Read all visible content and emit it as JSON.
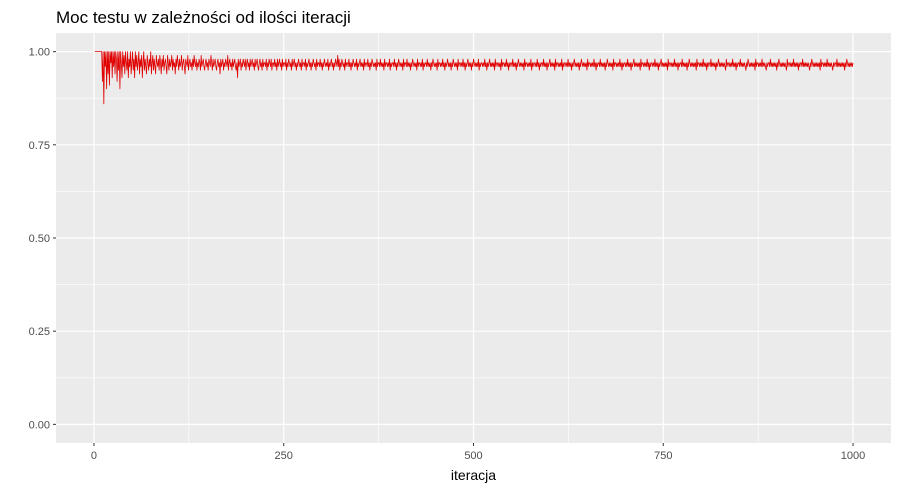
{
  "chart_data": {
    "type": "line",
    "title": "Moc testu w zależności od ilości iteracji",
    "xlabel": "iteracja",
    "ylabel": "",
    "xlim": [
      -50,
      1050
    ],
    "ylim": [
      -0.05,
      1.05
    ],
    "x_ticks": [
      0,
      250,
      500,
      750,
      1000
    ],
    "x_tick_labels": [
      "0",
      "250",
      "500",
      "750",
      "1000"
    ],
    "y_ticks": [
      0,
      0.25,
      0.5,
      0.75,
      1.0
    ],
    "y_tick_labels": [
      "0.00",
      "0.25",
      "0.50",
      "0.75",
      "1.00"
    ],
    "x_minor_ticks": [
      125,
      375,
      625,
      875
    ],
    "y_minor_ticks": [
      0.125,
      0.375,
      0.625,
      0.875
    ],
    "grid": true,
    "legend": "none",
    "colors": {
      "panel": "#ebebeb",
      "grid": "#ffffff",
      "series": "#e00000"
    },
    "series": [
      {
        "name": "",
        "x_start": 1,
        "x_step": 1,
        "values": [
          1.0,
          1.0,
          1.0,
          1.0,
          1.0,
          1.0,
          1.0,
          1.0,
          1.0,
          1.0,
          1.0,
          0.92,
          1.0,
          0.86,
          1.0,
          0.96,
          1.0,
          0.9,
          1.0,
          0.94,
          1.0,
          0.91,
          1.0,
          0.97,
          1.0,
          0.93,
          1.0,
          0.96,
          1.0,
          0.94,
          1.0,
          0.98,
          0.92,
          1.0,
          0.95,
          1.0,
          0.9,
          1.0,
          0.97,
          0.93,
          1.0,
          0.96,
          0.99,
          0.94,
          1.0,
          0.97,
          0.95,
          1.0,
          0.93,
          0.98,
          0.96,
          1.0,
          0.94,
          0.97,
          1.0,
          0.95,
          0.98,
          0.93,
          1.0,
          0.96,
          0.99,
          0.95,
          0.97,
          1.0,
          0.94,
          0.98,
          0.96,
          0.99,
          0.93,
          0.97,
          1.0,
          0.95,
          0.98,
          0.96,
          0.94,
          0.99,
          0.97,
          0.95,
          0.98,
          0.96,
          1.0,
          0.94,
          0.97,
          0.99,
          0.95,
          0.98,
          0.96,
          0.94,
          0.99,
          0.97,
          0.96,
          0.98,
          0.95,
          0.99,
          0.97,
          0.94,
          0.98,
          0.96,
          0.99,
          0.95,
          0.97,
          0.98,
          0.96,
          0.94,
          0.99,
          0.97,
          0.95,
          0.98,
          0.96,
          0.97,
          0.99,
          0.95,
          0.98,
          0.96,
          0.97,
          0.94,
          0.98,
          0.96,
          0.99,
          0.97,
          0.95,
          0.98,
          0.96,
          0.97,
          0.99,
          0.95,
          0.97,
          0.98,
          0.96,
          0.94,
          0.98,
          0.97,
          0.96,
          0.99,
          0.95,
          0.97,
          0.98,
          0.96,
          0.97,
          0.95,
          0.98,
          0.96,
          0.99,
          0.97,
          0.96,
          0.98,
          0.95,
          0.97,
          0.96,
          0.98,
          0.97,
          0.95,
          0.99,
          0.96,
          0.97,
          0.98,
          0.96,
          0.95,
          0.97,
          0.98,
          0.96,
          0.97,
          0.95,
          0.98,
          0.97,
          0.96,
          0.99,
          0.97,
          0.95,
          0.98,
          0.96,
          0.97,
          0.98,
          0.96,
          0.95,
          0.97,
          0.98,
          0.96,
          0.97,
          0.94,
          0.98,
          0.96,
          0.97,
          0.98,
          0.95,
          0.97,
          0.96,
          0.98,
          0.97,
          0.96,
          0.99,
          0.95,
          0.97,
          0.98,
          0.96,
          0.97,
          0.95,
          0.98,
          0.96,
          0.97,
          0.98,
          0.96,
          0.95,
          0.97,
          0.93,
          0.98,
          0.96,
          0.97,
          0.98,
          0.95,
          0.97,
          0.96,
          0.98,
          0.97,
          0.96,
          0.98,
          0.95,
          0.97,
          0.98,
          0.96,
          0.97,
          0.95,
          0.98,
          0.96,
          0.97,
          0.98,
          0.96,
          0.97,
          0.95,
          0.98,
          0.96,
          0.97,
          0.98,
          0.96,
          0.95,
          0.97,
          0.98,
          0.96,
          0.97,
          0.95,
          0.98,
          0.96,
          0.97,
          0.97,
          0.96,
          0.98,
          0.95,
          0.97,
          0.96,
          0.98,
          0.97,
          0.96,
          0.98,
          0.95,
          0.97,
          0.97,
          0.96,
          0.98,
          0.96,
          0.97,
          0.95,
          0.98,
          0.96,
          0.97,
          0.98,
          0.96,
          0.97,
          0.95,
          0.98,
          0.96,
          0.97,
          0.97,
          0.96,
          0.98,
          0.95,
          0.97,
          0.96,
          0.98,
          0.97,
          0.96,
          0.97,
          0.95,
          0.98,
          0.96,
          0.97,
          0.98,
          0.96,
          0.97,
          0.95,
          0.97,
          0.96,
          0.98,
          0.97,
          0.96,
          0.97,
          0.95,
          0.98,
          0.96,
          0.97,
          0.97,
          0.96,
          0.98,
          0.95,
          0.97,
          0.96,
          0.97,
          0.98,
          0.96,
          0.97,
          0.95,
          0.97,
          0.96,
          0.98,
          0.97,
          0.96,
          0.97,
          0.95,
          0.98,
          0.96,
          0.97,
          0.97,
          0.96,
          0.98,
          0.96,
          0.97,
          0.95,
          0.97,
          0.96,
          0.98,
          0.97,
          0.96,
          0.97,
          0.96,
          0.98,
          0.95,
          0.97,
          0.96,
          0.97,
          0.98,
          0.96,
          0.97,
          0.95,
          0.97,
          0.96,
          0.98,
          0.97,
          0.96,
          0.99,
          0.96,
          0.98,
          0.95,
          0.97,
          0.96,
          0.98,
          0.97,
          0.96,
          0.97,
          0.95,
          0.98,
          0.96,
          0.97,
          0.97,
          0.96,
          0.98,
          0.96,
          0.97,
          0.95,
          0.97,
          0.96,
          0.98,
          0.97,
          0.96,
          0.97,
          0.96,
          0.98,
          0.95,
          0.97,
          0.96,
          0.97,
          0.98,
          0.96,
          0.97,
          0.96,
          0.97,
          0.95,
          0.98,
          0.96,
          0.97,
          0.97,
          0.96,
          0.98,
          0.96,
          0.97,
          0.95,
          0.97,
          0.96,
          0.98,
          0.97,
          0.96,
          0.97,
          0.96,
          0.97,
          0.95,
          0.98,
          0.96,
          0.97,
          0.97,
          0.96,
          0.98,
          0.96,
          0.97,
          0.96,
          0.97,
          0.95,
          0.98,
          0.96,
          0.97,
          0.97,
          0.96,
          0.97,
          0.96,
          0.98,
          0.95,
          0.97,
          0.96,
          0.97,
          0.97,
          0.96,
          0.98,
          0.96,
          0.97,
          0.95,
          0.97,
          0.96,
          0.98,
          0.97,
          0.96,
          0.97,
          0.96,
          0.97,
          0.95,
          0.98,
          0.96,
          0.97,
          0.97,
          0.96,
          0.98,
          0.96,
          0.97,
          0.96,
          0.97,
          0.95,
          0.97,
          0.96,
          0.98,
          0.97,
          0.96,
          0.97,
          0.96,
          0.97,
          0.95,
          0.98,
          0.96,
          0.97,
          0.97,
          0.96,
          0.97,
          0.96,
          0.98,
          0.95,
          0.97,
          0.96,
          0.97,
          0.97,
          0.96,
          0.98,
          0.96,
          0.97,
          0.96,
          0.97,
          0.95,
          0.97,
          0.96,
          0.98,
          0.97,
          0.96,
          0.97,
          0.96,
          0.97,
          0.95,
          0.98,
          0.96,
          0.97,
          0.97,
          0.96,
          0.97,
          0.96,
          0.98,
          0.96,
          0.97,
          0.95,
          0.97,
          0.96,
          0.97,
          0.98,
          0.96,
          0.97,
          0.96,
          0.97,
          0.95,
          0.97,
          0.96,
          0.98,
          0.97,
          0.96,
          0.97,
          0.96,
          0.97,
          0.95,
          0.98,
          0.96,
          0.97,
          0.97,
          0.96,
          0.97,
          0.96,
          0.98,
          0.96,
          0.97,
          0.95,
          0.97,
          0.96,
          0.97,
          0.98,
          0.96,
          0.97,
          0.96,
          0.97,
          0.95,
          0.97,
          0.96,
          0.98,
          0.97,
          0.96,
          0.97,
          0.96,
          0.97,
          0.96,
          0.98,
          0.95,
          0.97,
          0.96,
          0.97,
          0.97,
          0.96,
          0.97,
          0.96,
          0.98,
          0.96,
          0.97,
          0.95,
          0.97,
          0.96,
          0.97,
          0.98,
          0.96,
          0.97,
          0.96,
          0.97,
          0.96,
          0.97,
          0.95,
          0.98,
          0.96,
          0.97,
          0.97,
          0.96,
          0.97,
          0.96,
          0.97,
          0.95,
          0.98,
          0.96,
          0.97,
          0.97,
          0.96,
          0.97,
          0.96,
          0.98,
          0.96,
          0.97,
          0.95,
          0.97,
          0.96,
          0.97,
          0.97,
          0.96,
          0.98,
          0.96,
          0.97,
          0.96,
          0.97,
          0.95,
          0.97,
          0.96,
          0.98,
          0.97,
          0.96,
          0.97,
          0.96,
          0.97,
          0.96,
          0.97,
          0.95,
          0.98,
          0.96,
          0.97,
          0.97,
          0.96,
          0.97,
          0.96,
          0.97,
          0.96,
          0.98,
          0.95,
          0.97,
          0.96,
          0.97,
          0.97,
          0.96,
          0.97,
          0.96,
          0.98,
          0.96,
          0.97,
          0.95,
          0.97,
          0.96,
          0.97,
          0.97,
          0.96,
          0.98,
          0.96,
          0.97,
          0.96,
          0.97,
          0.95,
          0.97,
          0.96,
          0.97,
          0.98,
          0.96,
          0.97,
          0.96,
          0.97,
          0.96,
          0.97,
          0.95,
          0.98,
          0.96,
          0.97,
          0.97,
          0.96,
          0.97,
          0.96,
          0.97,
          0.96,
          0.98,
          0.95,
          0.97,
          0.96,
          0.97,
          0.97,
          0.96,
          0.97,
          0.96,
          0.98,
          0.96,
          0.97,
          0.96,
          0.97,
          0.95,
          0.97,
          0.96,
          0.97,
          0.98,
          0.96,
          0.97,
          0.96,
          0.97,
          0.96,
          0.97,
          0.95,
          0.97,
          0.96,
          0.98,
          0.97,
          0.96,
          0.97,
          0.96,
          0.97,
          0.96,
          0.97,
          0.95,
          0.98,
          0.96,
          0.97,
          0.97,
          0.96,
          0.97,
          0.96,
          0.97,
          0.96,
          0.98,
          0.96,
          0.97,
          0.95,
          0.97,
          0.96,
          0.97,
          0.97,
          0.96,
          0.98,
          0.96,
          0.97,
          0.96,
          0.97,
          0.96,
          0.97,
          0.95,
          0.97,
          0.96,
          0.98,
          0.97,
          0.96,
          0.97,
          0.96,
          0.97,
          0.96,
          0.97,
          0.95,
          0.98,
          0.96,
          0.97,
          0.97,
          0.96,
          0.97,
          0.96,
          0.97,
          0.96,
          0.98,
          0.96,
          0.97,
          0.95,
          0.97,
          0.96,
          0.97,
          0.97,
          0.96,
          0.97,
          0.96,
          0.98,
          0.96,
          0.97,
          0.96,
          0.97,
          0.95,
          0.97,
          0.96,
          0.97,
          0.98,
          0.96,
          0.97,
          0.96,
          0.97,
          0.96,
          0.97,
          0.96,
          0.97,
          0.95,
          0.98,
          0.96,
          0.97,
          0.97,
          0.96,
          0.97,
          0.96,
          0.97,
          0.96,
          0.98,
          0.96,
          0.97,
          0.95,
          0.97,
          0.96,
          0.97,
          0.97,
          0.96,
          0.97,
          0.96,
          0.98,
          0.96,
          0.97,
          0.96,
          0.97,
          0.95,
          0.97,
          0.96,
          0.97,
          0.98,
          0.96,
          0.97,
          0.96,
          0.97,
          0.96,
          0.97,
          0.96,
          0.97,
          0.95,
          0.98,
          0.96,
          0.97,
          0.97,
          0.96,
          0.97,
          0.96,
          0.97,
          0.96,
          0.98,
          0.96,
          0.97,
          0.96,
          0.97,
          0.95,
          0.97,
          0.96,
          0.97,
          0.97,
          0.96,
          0.98,
          0.96,
          0.97,
          0.96,
          0.97,
          0.96,
          0.97,
          0.95,
          0.97,
          0.96,
          0.98,
          0.97,
          0.96,
          0.97,
          0.96,
          0.97,
          0.96,
          0.97,
          0.96,
          0.97,
          0.95,
          0.98,
          0.96,
          0.97,
          0.97,
          0.96,
          0.97,
          0.96,
          0.97,
          0.96,
          0.98,
          0.96,
          0.97,
          0.96,
          0.97,
          0.95,
          0.97,
          0.96,
          0.97,
          0.97,
          0.96,
          0.98,
          0.96,
          0.97,
          0.96,
          0.97,
          0.96,
          0.97,
          0.95,
          0.97,
          0.96,
          0.97,
          0.98,
          0.96,
          0.97,
          0.96,
          0.97,
          0.96,
          0.97,
          0.96,
          0.97,
          0.96,
          0.95,
          0.98,
          0.96,
          0.97,
          0.97,
          0.96,
          0.97,
          0.96,
          0.97,
          0.96,
          0.98,
          0.96,
          0.97,
          0.96,
          0.97,
          0.95,
          0.97,
          0.96,
          0.97,
          0.97,
          0.96,
          0.98,
          0.96,
          0.97,
          0.96,
          0.97,
          0.96,
          0.97,
          0.96,
          0.95,
          0.97,
          0.96,
          0.98,
          0.97,
          0.96,
          0.97,
          0.96,
          0.97,
          0.96,
          0.97,
          0.96,
          0.97,
          0.95,
          0.98,
          0.96,
          0.97,
          0.97,
          0.96,
          0.97,
          0.96,
          0.97,
          0.96,
          0.98,
          0.96,
          0.97,
          0.96,
          0.97,
          0.96,
          0.95,
          0.97,
          0.96,
          0.97,
          0.97,
          0.96,
          0.98,
          0.96,
          0.97,
          0.96,
          0.97,
          0.96,
          0.97,
          0.96,
          0.97,
          0.95,
          0.97,
          0.96,
          0.98,
          0.97,
          0.96,
          0.97,
          0.96,
          0.97,
          0.96,
          0.97,
          0.96,
          0.97,
          0.96,
          0.95,
          0.98,
          0.96,
          0.97,
          0.97,
          0.96,
          0.97,
          0.96,
          0.97,
          0.96,
          0.98,
          0.96,
          0.97,
          0.96,
          0.97,
          0.96,
          0.97,
          0.95,
          0.97,
          0.96,
          0.97,
          0.97,
          0.96,
          0.98,
          0.96,
          0.97,
          0.96,
          0.97,
          0.96,
          0.97,
          0.96,
          0.97,
          0.96,
          0.95,
          0.97,
          0.96,
          0.98,
          0.97,
          0.96,
          0.97,
          0.96,
          0.97,
          0.96,
          0.97,
          0.96,
          0.97,
          0.96,
          0.97,
          0.95,
          0.98,
          0.96,
          0.97,
          0.97,
          0.96,
          0.97,
          0.96,
          0.97,
          0.96,
          0.98,
          0.96,
          0.97,
          0.96,
          0.97,
          0.96,
          0.97,
          0.96,
          0.95,
          0.97,
          0.96,
          0.97,
          0.97,
          0.96,
          0.98,
          0.96,
          0.97,
          0.96,
          0.97,
          0.96,
          0.97,
          0.96,
          0.97,
          0.96,
          0.97,
          0.95,
          0.97,
          0.96,
          0.98,
          0.97,
          0.96,
          0.97,
          0.96,
          0.97,
          0.96,
          0.97,
          0.96,
          0.97
        ]
      }
    ]
  }
}
